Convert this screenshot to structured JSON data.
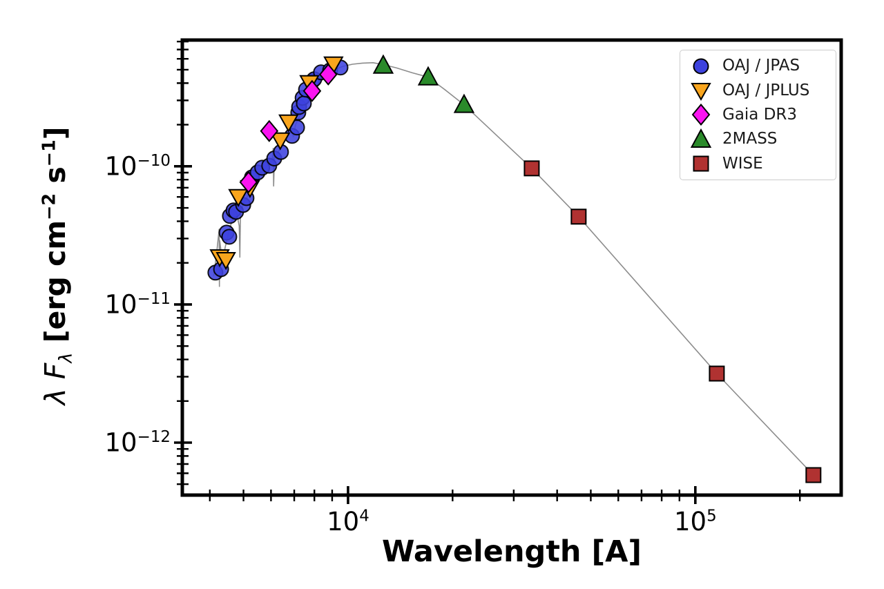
{
  "chart_data": {
    "type": "scatter",
    "title": "",
    "xlabel": "Wavelength [A]",
    "ylabel": "λ Fλ [erg cm−2 s−1]",
    "ylabel_parts": {
      "italic": "λ F",
      "sub": "λ",
      "unit_pre": " [erg cm",
      "unit_sup1": "−2",
      "unit_mid": " s",
      "unit_sup2": "−1",
      "unit_post": "]"
    },
    "x_scale": "log",
    "y_scale": "log",
    "xlim": [
      3333,
      263000
    ],
    "ylim": [
      4.17e-13,
      8.2e-10
    ],
    "grid": false,
    "legend_position": "upper right",
    "x_major_ticks": [
      {
        "value": 10000,
        "mantissa": "10",
        "exponent": "4"
      },
      {
        "value": 100000,
        "mantissa": "10",
        "exponent": "5"
      }
    ],
    "y_major_ticks": [
      {
        "value": 1e-10,
        "mantissa": "10",
        "exponent": "−10"
      },
      {
        "value": 1e-11,
        "mantissa": "10",
        "exponent": "−11"
      },
      {
        "value": 1e-12,
        "mantissa": "10",
        "exponent": "−12"
      }
    ],
    "model_line": {
      "name": "model spectrum",
      "color": "#8c8c8c",
      "points": [
        [
          4100,
          1.6e-11
        ],
        [
          4180,
          2.3e-11
        ],
        [
          4255,
          3.5e-11
        ],
        [
          4262,
          1.35e-11
        ],
        [
          4270,
          2.9e-11
        ],
        [
          4350,
          2e-11
        ],
        [
          4430,
          2.6e-11
        ],
        [
          4530,
          3.3e-11
        ],
        [
          4640,
          4.1e-11
        ],
        [
          4760,
          4.8e-11
        ],
        [
          4860,
          3.7e-11
        ],
        [
          4880,
          2.2e-11
        ],
        [
          4900,
          4.6e-11
        ],
        [
          5000,
          5.4e-11
        ],
        [
          5120,
          6e-11
        ],
        [
          5250,
          6.8e-11
        ],
        [
          5400,
          7.8e-11
        ],
        [
          5560,
          8.8e-11
        ],
        [
          5720,
          9.5e-11
        ],
        [
          5880,
          1.02e-10
        ],
        [
          6040,
          1.1e-10
        ],
        [
          6090,
          1.35e-10
        ],
        [
          6105,
          7.2e-11
        ],
        [
          6140,
          1.16e-10
        ],
        [
          6300,
          1.28e-10
        ],
        [
          6480,
          1.42e-10
        ],
        [
          6660,
          1.62e-10
        ],
        [
          6850,
          1.85e-10
        ],
        [
          6960,
          1.64e-10
        ],
        [
          7060,
          2e-10
        ],
        [
          7250,
          2.3e-10
        ],
        [
          7450,
          2.62e-10
        ],
        [
          7660,
          2.95e-10
        ],
        [
          7880,
          3.35e-10
        ],
        [
          8120,
          3.75e-10
        ],
        [
          8380,
          4.15e-10
        ],
        [
          8660,
          4.5e-10
        ],
        [
          8960,
          4.85e-10
        ],
        [
          9300,
          5.1e-10
        ],
        [
          9700,
          5.3e-10
        ],
        [
          10300,
          5.48e-10
        ],
        [
          11000,
          5.58e-10
        ],
        [
          11800,
          5.62e-10
        ],
        [
          12630,
          5.45e-10
        ],
        [
          13800,
          5.15e-10
        ],
        [
          15300,
          4.75e-10
        ],
        [
          17010,
          4.42e-10
        ],
        [
          19100,
          3.55e-10
        ],
        [
          21580,
          2.79e-10
        ],
        [
          33800,
          9.66e-11
        ],
        [
          46130,
          4.32e-11
        ],
        [
          115300,
          3.16e-12
        ],
        [
          218800,
          5.82e-13
        ]
      ]
    },
    "series": [
      {
        "id": "jpas",
        "name": "OAJ / JPAS",
        "marker": "circle",
        "color": "#3d42de",
        "edge_color": "#000000",
        "points": [
          [
            4150,
            1.7e-11
          ],
          [
            4310,
            1.8e-11
          ],
          [
            4470,
            3.31e-11
          ],
          [
            4550,
            3.09e-11
          ],
          [
            4570,
            4.37e-11
          ],
          [
            4680,
            4.79e-11
          ],
          [
            4760,
            4.68e-11
          ],
          [
            4990,
            5.25e-11
          ],
          [
            5100,
            5.89e-11
          ],
          [
            5290,
            8.32e-11
          ],
          [
            5490,
            9.02e-11
          ],
          [
            5660,
            9.77e-11
          ],
          [
            5930,
            1.01e-10
          ],
          [
            6130,
            1.14e-10
          ],
          [
            6410,
            1.27e-10
          ],
          [
            6900,
            1.66e-10
          ],
          [
            7130,
            1.91e-10
          ],
          [
            7190,
            2.45e-10
          ],
          [
            7230,
            2.69e-10
          ],
          [
            7400,
            3.13e-10
          ],
          [
            7460,
            2.85e-10
          ],
          [
            7570,
            3.59e-10
          ],
          [
            7880,
            4.12e-10
          ],
          [
            7990,
            4.27e-10
          ],
          [
            8360,
            4.79e-10
          ],
          [
            8880,
            4.95e-10
          ],
          [
            9510,
            5.19e-10
          ]
        ]
      },
      {
        "id": "jplus",
        "name": "OAJ / JPLUS",
        "marker": "triangle-down",
        "color": "#f9a51d",
        "edge_color": "#000000",
        "points": [
          [
            4270,
            2.21e-11
          ],
          [
            4450,
            2.11e-11
          ],
          [
            4830,
            6.03e-11
          ],
          [
            5220,
            7e-11
          ],
          [
            6380,
            1.55e-10
          ],
          [
            6740,
            2.09e-10
          ],
          [
            7740,
            4.03e-10
          ],
          [
            9080,
            5.5e-10
          ]
        ]
      },
      {
        "id": "gaia",
        "name": "Gaia DR3",
        "marker": "diamond",
        "color": "#fa14f0",
        "edge_color": "#000000",
        "points": [
          [
            5170,
            7.67e-11
          ],
          [
            5930,
            1.8e-10
          ],
          [
            7880,
            3.51e-10
          ],
          [
            8770,
            4.62e-10
          ]
        ]
      },
      {
        "id": "2mass",
        "name": "2MASS",
        "marker": "triangle-up",
        "color": "#2a8a2a",
        "edge_color": "#000000",
        "points": [
          [
            12630,
            5.37e-10
          ],
          [
            17010,
            4.42e-10
          ],
          [
            21580,
            2.79e-10
          ]
        ]
      },
      {
        "id": "wise",
        "name": "WISE",
        "marker": "square",
        "color": "#b03231",
        "edge_color": "#000000",
        "points": [
          [
            33800,
            9.66e-11
          ],
          [
            46130,
            4.32e-11
          ],
          [
            115300,
            3.16e-12
          ],
          [
            218800,
            5.82e-13
          ]
        ]
      }
    ]
  }
}
